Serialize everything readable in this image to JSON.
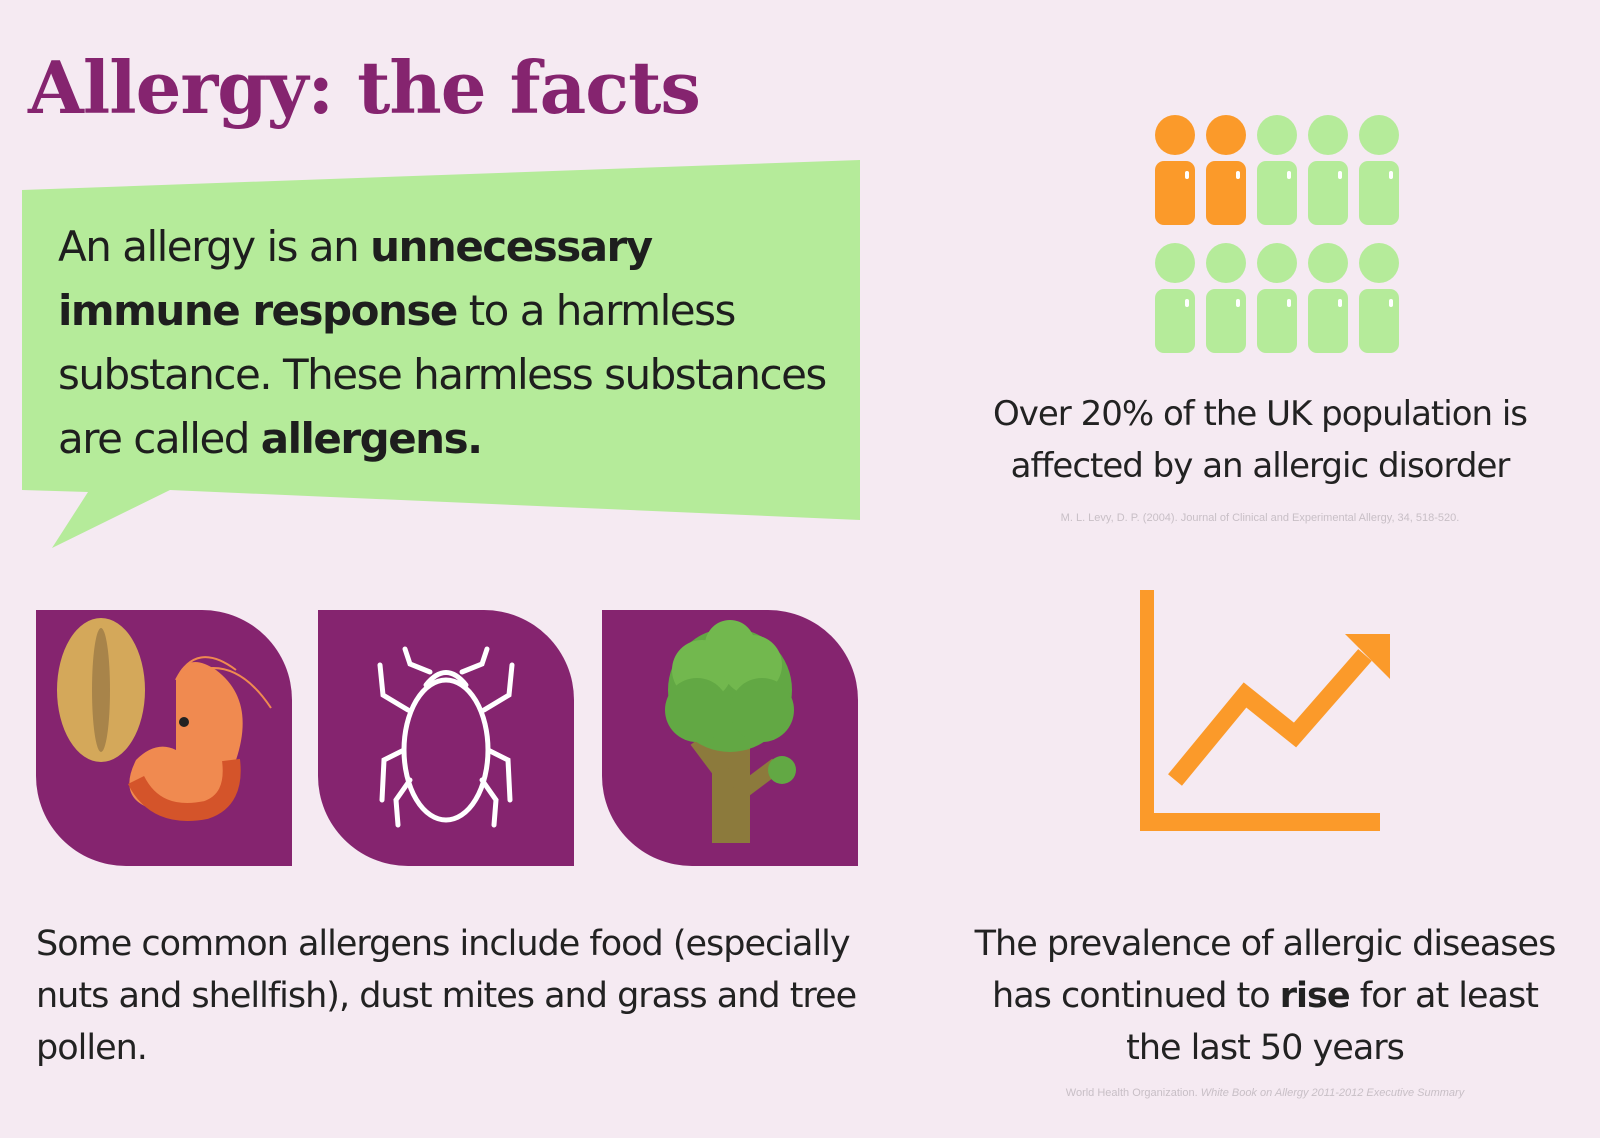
{
  "title": "Allergy: the facts",
  "definition": {
    "p1": "An allergy is an ",
    "b1": "unnecessary immune response",
    "p2": " to a harmless substance. These harmless substances are called ",
    "b2": "allergens."
  },
  "population_stat": {
    "text": "Over 20% of the UK population is affected by an allergic disorder",
    "affected_fraction": 0.2,
    "icons_total": 10,
    "icons_highlighted": 2,
    "highlight_color": "#fb9a2a",
    "base_color": "#b5eb9a",
    "citation": "M. L. Levy, D. P. (2004). Journal of Clinical and Experimental Allergy, 34, 518-520."
  },
  "allergens": {
    "tiles": [
      "nut-and-shrimp-icon",
      "dust-mite-icon",
      "tree-pollen-icon"
    ],
    "text": "Some common allergens include food (especially nuts and shellfish), dust mites and grass and tree pollen."
  },
  "prevalence": {
    "p1": "The prevalence of allergic diseases has continued to ",
    "b1": "rise",
    "p2": " for at least the last 50 years",
    "citation_plain": "World Health Organization. ",
    "citation_italic": "White Book on Allergy 2011-2012 Executive Summary",
    "icon": "rising-chart-icon"
  },
  "colors": {
    "purple": "#85246f",
    "green": "#b5eb9a",
    "orange": "#fb9a2a",
    "background": "#f5eaf2"
  }
}
